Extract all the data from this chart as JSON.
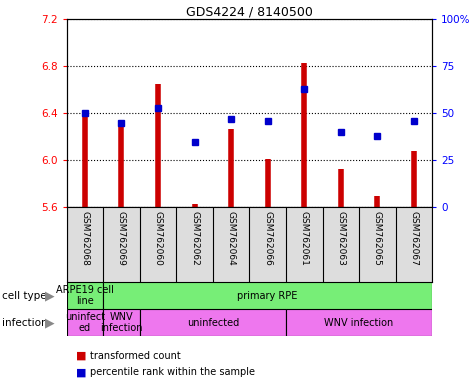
{
  "title": "GDS4224 / 8140500",
  "samples": [
    "GSM762068",
    "GSM762069",
    "GSM762060",
    "GSM762062",
    "GSM762064",
    "GSM762066",
    "GSM762061",
    "GSM762063",
    "GSM762065",
    "GSM762067"
  ],
  "transformed_counts": [
    6.4,
    6.3,
    6.65,
    5.63,
    6.27,
    6.01,
    6.83,
    5.93,
    5.7,
    6.08
  ],
  "percentile_ranks": [
    50,
    45,
    53,
    35,
    47,
    46,
    63,
    40,
    38,
    46
  ],
  "ylim_left": [
    5.6,
    7.2
  ],
  "ylim_right": [
    0,
    100
  ],
  "yticks_left": [
    5.6,
    6.0,
    6.4,
    6.8,
    7.2
  ],
  "yticks_right": [
    0,
    25,
    50,
    75,
    100
  ],
  "ytick_labels_right": [
    "0",
    "25",
    "50",
    "75",
    "100%"
  ],
  "bar_color": "#cc0000",
  "dot_color": "#0000cc",
  "bar_bottom": 5.6,
  "bg_color": "#dddddd",
  "cell_type_color": "#77ee77",
  "infection_color": "#ee77ee",
  "cell_type_labels": [
    {
      "text": "ARPE19 cell\nline",
      "xstart": 0,
      "xend": 1
    },
    {
      "text": "primary RPE",
      "xstart": 1,
      "xend": 10
    }
  ],
  "infection_labels": [
    {
      "text": "uninfect\ned",
      "xstart": 0,
      "xend": 1
    },
    {
      "text": "WNV\ninfection",
      "xstart": 1,
      "xend": 2
    },
    {
      "text": "uninfected",
      "xstart": 2,
      "xend": 6
    },
    {
      "text": "WNV infection",
      "xstart": 6,
      "xend": 10
    }
  ],
  "legend_items": [
    {
      "label": "transformed count",
      "color": "#cc0000"
    },
    {
      "label": "percentile rank within the sample",
      "color": "#0000cc"
    }
  ]
}
